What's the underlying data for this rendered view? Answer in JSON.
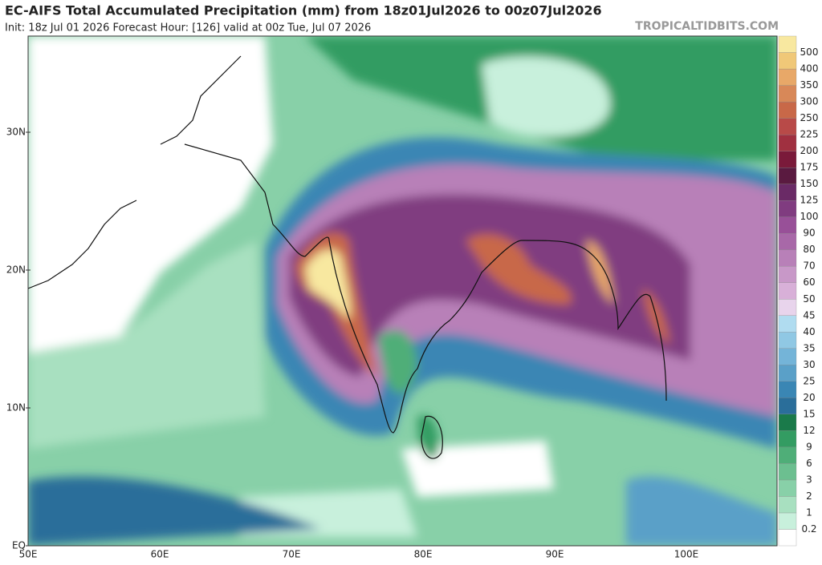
{
  "header": {
    "title": "EC-AIFS Total Accumulated Precipitation (mm) from 18z01Jul2026 to 00z07Jul2026",
    "subtitle": "Init: 18z Jul 01 2026   Forecast Hour: [126]   valid at 00z Tue, Jul 07 2026",
    "watermark": "TROPICALTIDBITS.COM"
  },
  "map": {
    "lat_labels": [
      "30N",
      "20N",
      "10N",
      "EQ"
    ],
    "lon_labels": [
      "50E",
      "60E",
      "70E",
      "80E",
      "90E",
      "100E"
    ]
  },
  "colorbar": {
    "labels": [
      0.2,
      1,
      2,
      3,
      6,
      9,
      12,
      15,
      20,
      25,
      30,
      35,
      40,
      45,
      50,
      60,
      70,
      80,
      90,
      100,
      125,
      150,
      175,
      200,
      225,
      250,
      300,
      350,
      400,
      500
    ],
    "colors": [
      "#ffffff",
      "#c8f0dc",
      "#a8e0c0",
      "#88d0a8",
      "#6cbf90",
      "#4fae78",
      "#339c62",
      "#1a7a4a",
      "#2a6e9a",
      "#3a86b4",
      "#5aa0c8",
      "#74b4d8",
      "#90c8e4",
      "#b0dcf0",
      "#e8d4ec",
      "#d8b0d8",
      "#c898c8",
      "#b880b8",
      "#a868a8",
      "#985098",
      "#803c80",
      "#6a2a66",
      "#5a1a40",
      "#7a1a3a",
      "#a03040",
      "#b84a48",
      "#c86848",
      "#d88858",
      "#e8a868",
      "#f0c878",
      "#f8e8a0"
    ]
  }
}
